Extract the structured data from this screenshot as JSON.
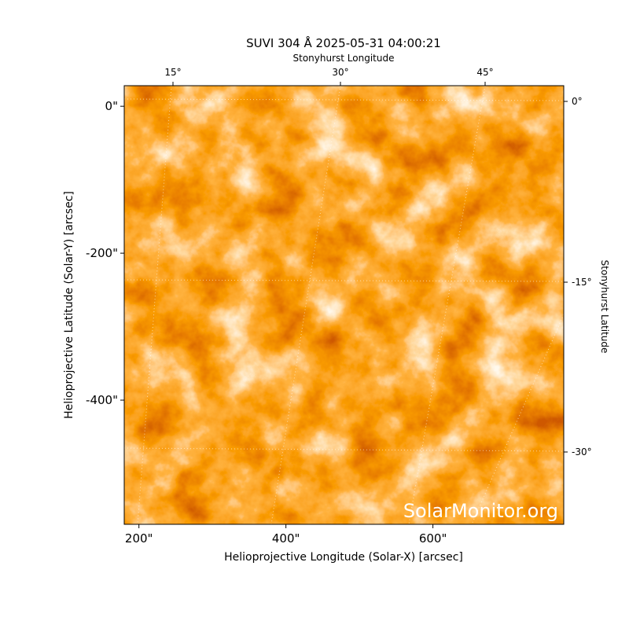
{
  "chart_data": {
    "type": "image",
    "title": "SUVI 304 Å 2025-05-31 04:00:21",
    "x_label": "Helioprojective Longitude (Solar-X) [arcsec]",
    "y_label": "Helioprojective Latitude (Solar-Y) [arcsec]",
    "top_label": "Stonyhurst Longitude",
    "right_label": "Stonyhurst Latitude",
    "xlim": [
      180,
      778
    ],
    "ylim": [
      -569,
      28
    ],
    "xticks": [
      {
        "value": 200,
        "label": "200\""
      },
      {
        "value": 400,
        "label": "400\""
      },
      {
        "value": 600,
        "label": "600\""
      }
    ],
    "yticks": [
      {
        "value": 0,
        "label": "0\""
      },
      {
        "value": -200,
        "label": "-200\""
      },
      {
        "value": -400,
        "label": "-400\""
      }
    ],
    "top_ticks": [
      {
        "value": 15,
        "label": "15°"
      },
      {
        "value": 30,
        "label": "30°"
      },
      {
        "value": 45,
        "label": "45°"
      }
    ],
    "right_ticks": [
      {
        "value": 0,
        "label": "0°"
      },
      {
        "value": -15,
        "label": "-15°"
      },
      {
        "value": -30,
        "label": "-30°"
      }
    ],
    "watermark": "SolarMonitor.org"
  }
}
